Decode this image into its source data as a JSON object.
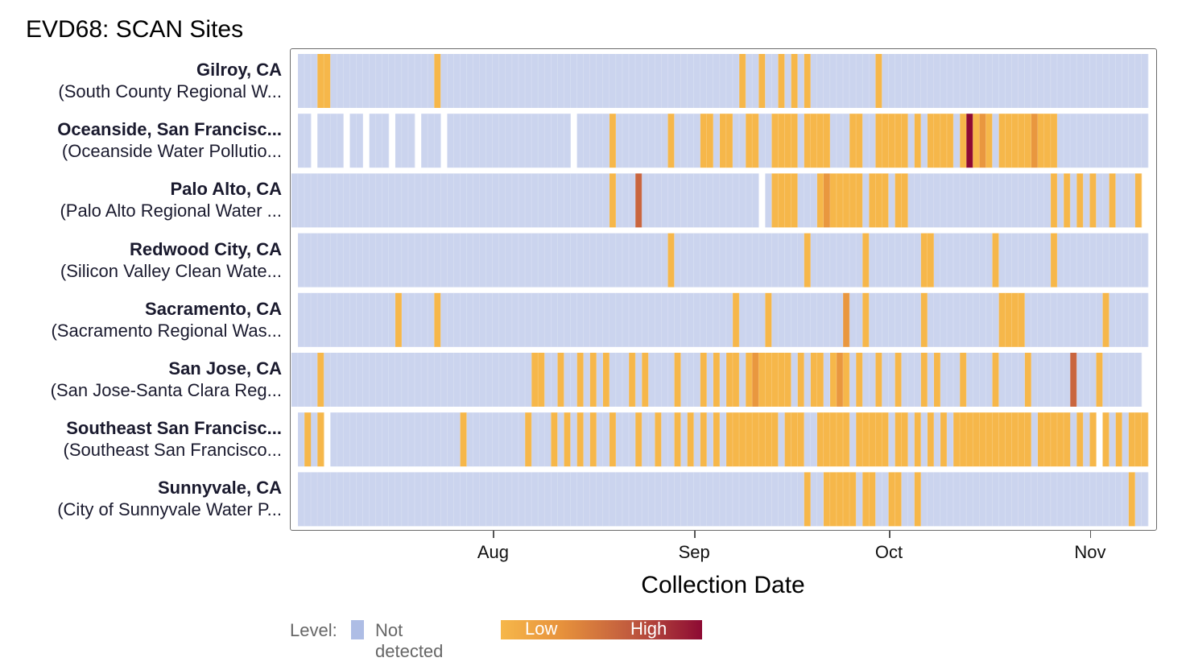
{
  "header": {
    "title": "EVD68: SCAN Sites"
  },
  "xaxis": {
    "label": "Collection Date",
    "ticks": [
      {
        "label": "Aug",
        "day": 32
      },
      {
        "label": "Sep",
        "day": 63
      },
      {
        "label": "Oct",
        "day": 93
      },
      {
        "label": "Nov",
        "day": 124
      }
    ]
  },
  "legend": {
    "title": "Level:",
    "not_detected": "Not detected",
    "low": "Low",
    "high": "High"
  },
  "colors": {
    "not_detected": "#cbd4ee",
    "low": "#f6b74a",
    "mid": "#e9973f",
    "elevated": "#c9653e",
    "high": "#8d0a33",
    "gap": "#ffffff"
  },
  "sites": [
    {
      "name": "Gilroy, CA",
      "plant": "(South County Regional W..."
    },
    {
      "name": "Oceanside, San Francisc...",
      "plant": "(Oceanside Water Pollutio..."
    },
    {
      "name": "Palo Alto, CA",
      "plant": "(Palo Alto Regional Water ..."
    },
    {
      "name": "Redwood City, CA",
      "plant": "(Silicon Valley Clean Wate..."
    },
    {
      "name": "Sacramento, CA",
      "plant": "(Sacramento Regional Was..."
    },
    {
      "name": "San Jose, CA",
      "plant": "(San Jose-Santa Clara Reg..."
    },
    {
      "name": "Southeast San Francisc...",
      "plant": "(Southeast San Francisco..."
    },
    {
      "name": "Sunnyvale, CA",
      "plant": "(City of Sunnyvale Water P..."
    }
  ],
  "chart_data": {
    "type": "heatmap",
    "title": "EVD68: SCAN Sites",
    "xlabel": "Collection Date",
    "ylabel": "",
    "x_unit": "day (1 = Jul 1)",
    "xlim": [
      1,
      133
    ],
    "xticks": [
      "Aug",
      "Sep",
      "Oct",
      "Nov"
    ],
    "levels": [
      "Not detected",
      "Low",
      "High"
    ],
    "series": [
      {
        "name": "Gilroy, CA",
        "start": 2,
        "end": 132,
        "missing": [],
        "low": [
          5,
          6,
          23,
          70,
          73,
          76,
          78,
          80,
          91
        ],
        "mid": [],
        "elevated": [],
        "high": []
      },
      {
        "name": "Oceanside, San Francisc...",
        "start": 2,
        "end": 132,
        "missing": [
          4,
          9,
          12,
          16,
          20,
          24,
          44
        ],
        "low": [
          50,
          59,
          64,
          65,
          67,
          68,
          71,
          72,
          75,
          76,
          77,
          78,
          80,
          81,
          82,
          83,
          87,
          88,
          91,
          92,
          93,
          94,
          95,
          97,
          99,
          100,
          101,
          102,
          104,
          106,
          108,
          110,
          111,
          112,
          113,
          114,
          115,
          116,
          117,
          118
        ],
        "mid": [
          107,
          115
        ],
        "elevated": [],
        "high": [
          105
        ]
      },
      {
        "name": "Palo Alto, CA",
        "start": 1,
        "end": 131,
        "missing": [
          73
        ],
        "low": [
          50,
          75,
          76,
          77,
          78,
          82,
          83,
          84,
          85,
          86,
          87,
          88,
          90,
          91,
          92,
          94,
          95,
          118,
          120,
          122,
          124,
          127,
          131
        ],
        "mid": [
          83
        ],
        "elevated": [
          54
        ],
        "high": []
      },
      {
        "name": "Redwood City, CA",
        "start": 2,
        "end": 132,
        "missing": [],
        "low": [
          59,
          80,
          89,
          98,
          99,
          109,
          118
        ],
        "mid": [],
        "elevated": [],
        "high": []
      },
      {
        "name": "Sacramento, CA",
        "start": 2,
        "end": 132,
        "missing": [],
        "low": [
          17,
          23,
          69,
          74,
          89,
          98,
          110,
          111,
          112,
          113,
          126
        ],
        "mid": [
          86
        ],
        "elevated": [],
        "high": []
      },
      {
        "name": "San Jose, CA",
        "start": 1,
        "end": 131,
        "missing": [],
        "low": [
          5,
          38,
          39,
          42,
          45,
          47,
          49,
          53,
          55,
          60,
          64,
          66,
          68,
          69,
          71,
          72,
          73,
          74,
          75,
          76,
          77,
          79,
          81,
          82,
          84,
          85,
          86,
          88,
          91,
          94,
          98,
          100,
          104,
          109,
          114,
          121,
          125
        ],
        "mid": [
          72,
          85
        ],
        "elevated": [
          121
        ],
        "high": []
      },
      {
        "name": "Southeast San Francisc...",
        "start": 2,
        "end": 132,
        "missing": [
          3,
          6,
          120,
          125
        ],
        "low": [
          3,
          5,
          27,
          37,
          41,
          43,
          45,
          47,
          50,
          54,
          57,
          60,
          62,
          64,
          66,
          68,
          69,
          70,
          71,
          72,
          73,
          74,
          75,
          77,
          78,
          79,
          82,
          83,
          84,
          85,
          86,
          88,
          89,
          90,
          91,
          92,
          94,
          95,
          97,
          99,
          101,
          103,
          104,
          105,
          106,
          107,
          108,
          109,
          110,
          111,
          112,
          113,
          114,
          116,
          117,
          118,
          119,
          120,
          122,
          124,
          126,
          128,
          130,
          131,
          132
        ],
        "mid": [],
        "elevated": [],
        "high": []
      },
      {
        "name": "Sunnyvale, CA",
        "start": 2,
        "end": 132,
        "missing": [],
        "low": [
          80,
          83,
          84,
          85,
          86,
          87,
          89,
          90,
          93,
          94,
          97,
          130
        ],
        "mid": [],
        "elevated": [],
        "high": []
      }
    ]
  }
}
